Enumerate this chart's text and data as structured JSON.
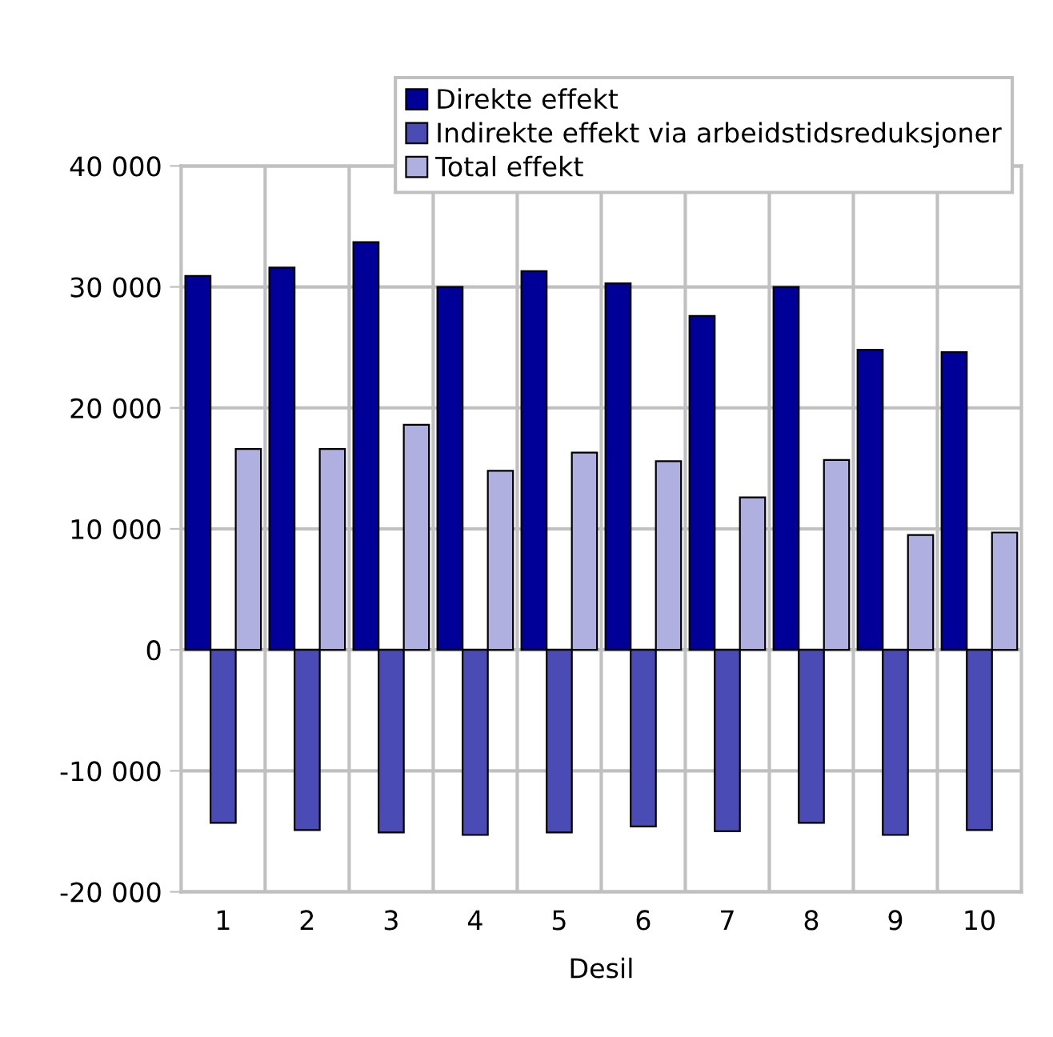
{
  "chart_data": {
    "type": "bar",
    "xlabel": "Desil",
    "categories": [
      "1",
      "2",
      "3",
      "4",
      "5",
      "6",
      "7",
      "8",
      "9",
      "10"
    ],
    "series": [
      {
        "name": "Direkte effekt",
        "color": "#000099",
        "values": [
          30900,
          31600,
          33700,
          30000,
          31300,
          30300,
          27600,
          30000,
          24800,
          24600
        ]
      },
      {
        "name": "Indirekte effekt via arbeidstidsreduksjoner",
        "color": "#4b4bb5",
        "values": [
          -14300,
          -14900,
          -15100,
          -15300,
          -15100,
          -14600,
          -15000,
          -14300,
          -15300,
          -14900
        ]
      },
      {
        "name": "Total effekt",
        "color": "#b0b0e0",
        "values": [
          16600,
          16600,
          18600,
          14800,
          16300,
          15600,
          12600,
          15700,
          9500,
          9700
        ]
      }
    ],
    "ylim": [
      -20000,
      40000
    ],
    "yticks": [
      {
        "value": -20000,
        "label": "-20 000"
      },
      {
        "value": -10000,
        "label": "-10 000"
      },
      {
        "value": 0,
        "label": "0"
      },
      {
        "value": 10000,
        "label": "10 000"
      },
      {
        "value": 20000,
        "label": "20 000"
      },
      {
        "value": 30000,
        "label": "30 000"
      },
      {
        "value": 40000,
        "label": "40 000"
      }
    ],
    "grid": true,
    "legend": "top right"
  }
}
